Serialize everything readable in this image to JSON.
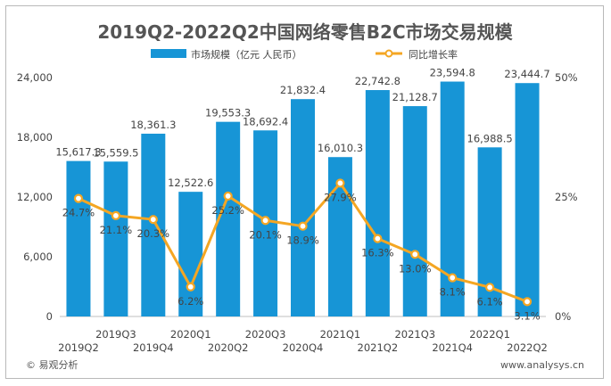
{
  "chart_data": {
    "type": "bar",
    "title": "2019Q2-2022Q2中国网络零售B2C市场交易规模",
    "categories": [
      "2019Q2",
      "2019Q3",
      "2019Q4",
      "2020Q1",
      "2020Q2",
      "2020Q3",
      "2020Q4",
      "2021Q1",
      "2021Q2",
      "2021Q3",
      "2021Q4",
      "2022Q1",
      "2022Q2"
    ],
    "series": [
      {
        "name": "市场规模（亿元 人民币）",
        "type": "bar",
        "axis": "left",
        "values": [
          15617.3,
          15559.5,
          18361.3,
          12522.6,
          19553.3,
          18692.4,
          21832.4,
          16010.3,
          22742.8,
          21128.7,
          23594.8,
          16988.5,
          23444.7
        ],
        "labels": [
          "15,617.3",
          "15,559.5",
          "18,361.3",
          "12,522.6",
          "19,553.3",
          "18,692.4",
          "21,832.4",
          "16,010.3",
          "22,742.8",
          "21,128.7",
          "23,594.8",
          "16,988.5",
          "23,444.7"
        ]
      },
      {
        "name": "同比增长率",
        "type": "line",
        "axis": "right",
        "values": [
          24.7,
          21.1,
          20.3,
          6.2,
          25.2,
          20.1,
          18.9,
          27.9,
          16.3,
          13.0,
          8.1,
          6.1,
          3.1
        ],
        "labels": [
          "24.7%",
          "21.1%",
          "20.3%",
          "6.2%",
          "25.2%",
          "20.1%",
          "18.9%",
          "27.9%",
          "16.3%",
          "13.0%",
          "8.1%",
          "6.1%",
          "3.1%"
        ]
      }
    ],
    "y_left": {
      "ylim": [
        0,
        24000
      ],
      "ticks": [
        "0",
        "6,000",
        "12,000",
        "18,000",
        "24,000"
      ]
    },
    "y_right": {
      "ylim": [
        0,
        50
      ],
      "ticks": [
        "0%",
        "25%",
        "50%"
      ]
    },
    "legend_position": "top-center",
    "grid": false,
    "colors": {
      "bar": "#1795d6",
      "line": "#f4a623",
      "marker_fill": "#ffffff",
      "title": "#555555",
      "text": "#444444"
    }
  },
  "footer": {
    "source_left": "© 易观分析",
    "source_right": "www.analysys.cn"
  }
}
